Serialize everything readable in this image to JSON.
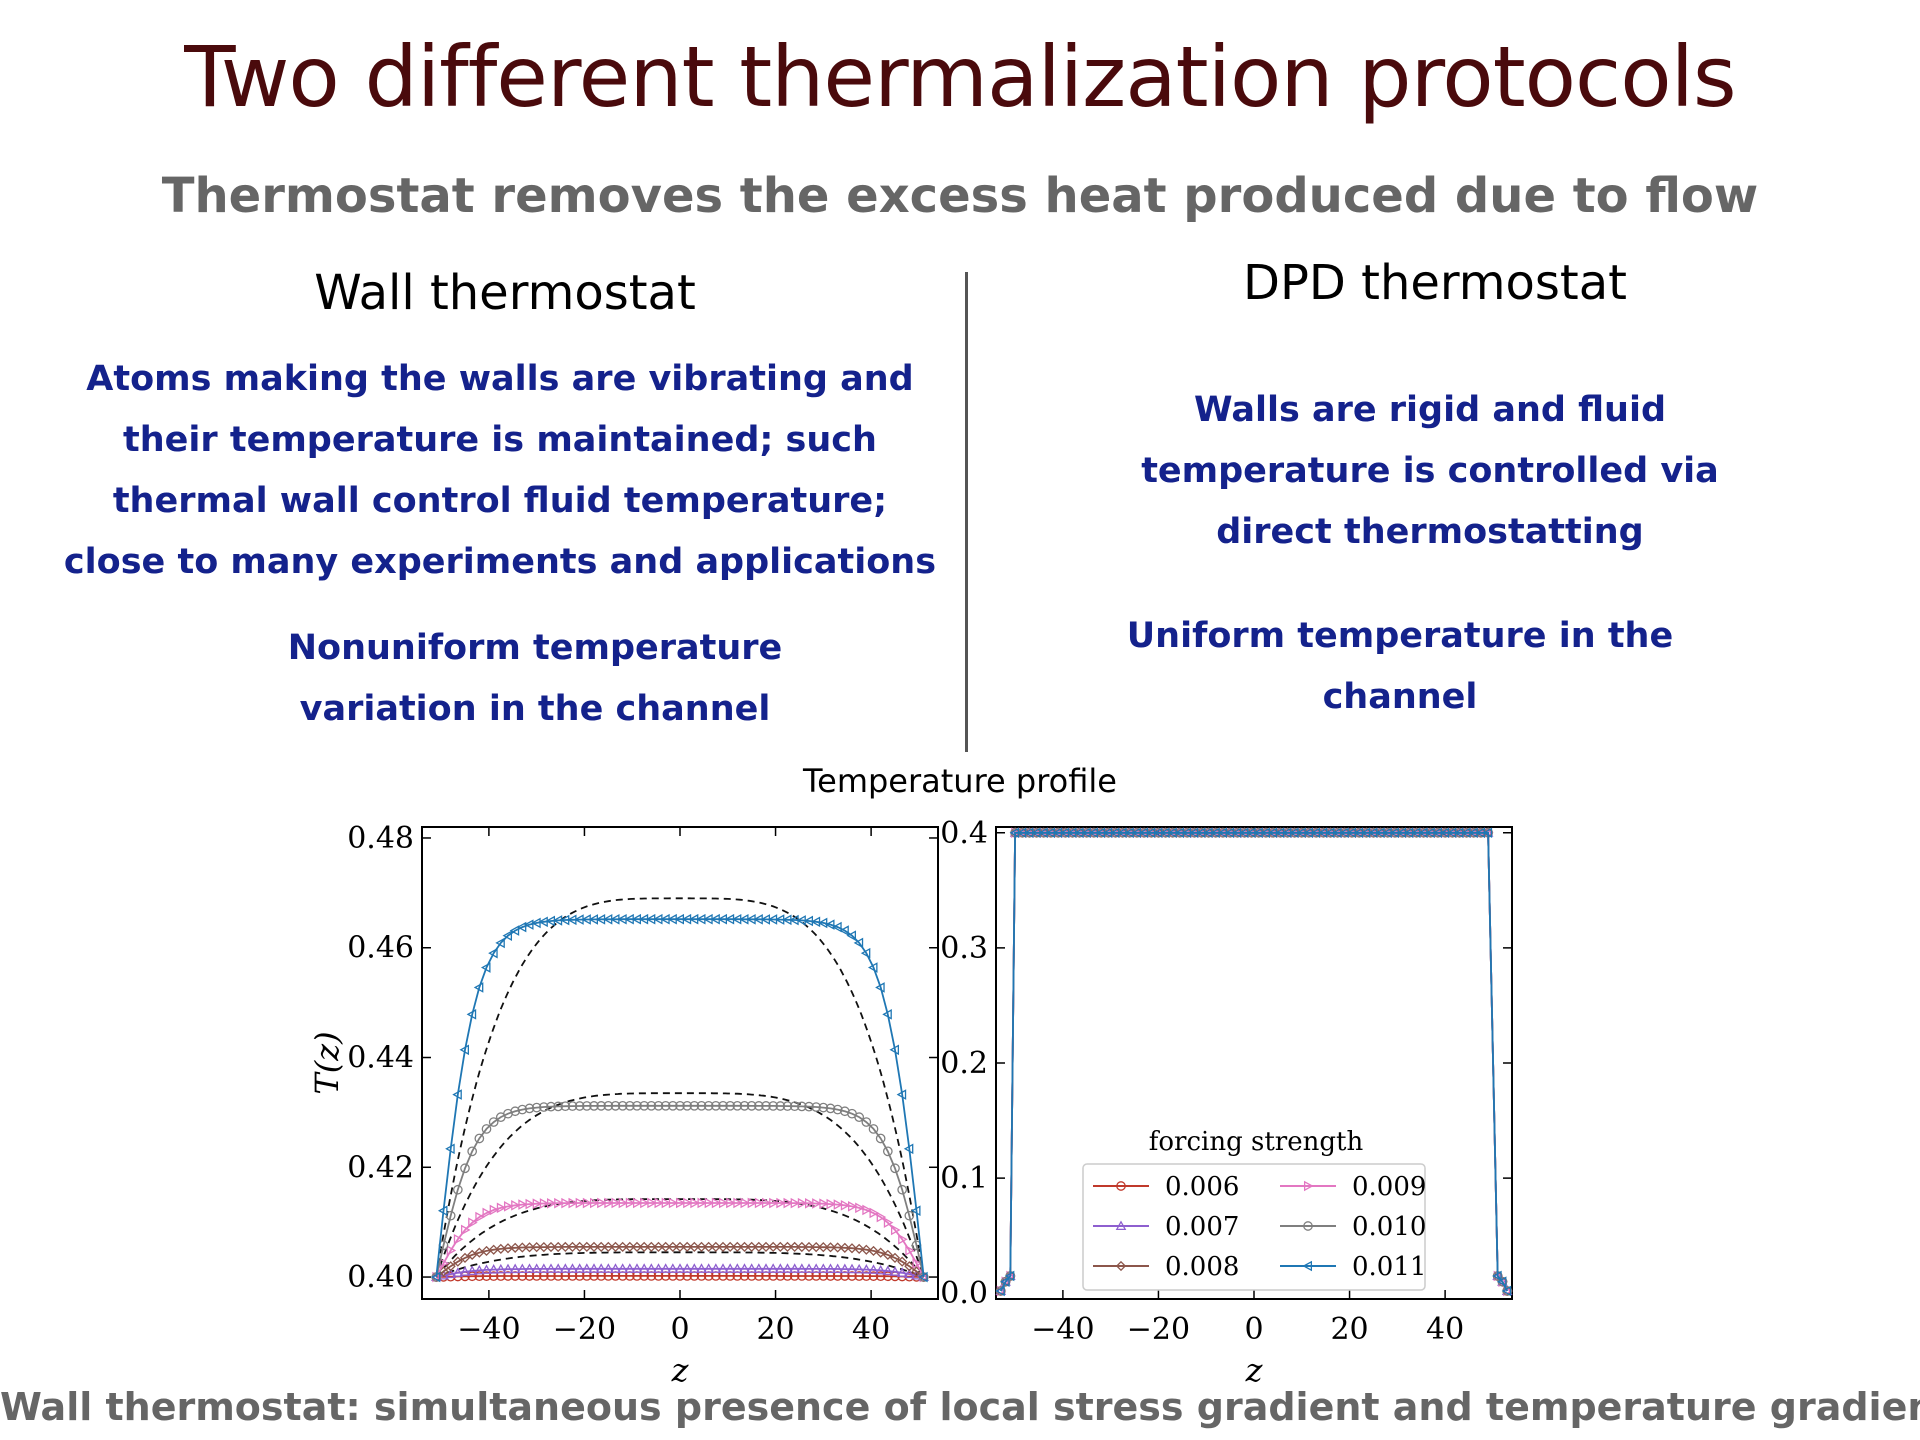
{
  "slide": {
    "title": "Two different thermalization protocols",
    "subtitle": "Thermostat removes the excess heat produced due to flow",
    "left": {
      "heading": "Wall thermostat",
      "description_lines": [
        "Atoms making the walls are vibrating and",
        "their temperature is maintained; such",
        "thermal wall control fluid temperature;",
        "close to many experiments and applications"
      ],
      "result_lines": [
        "Nonuniform temperature",
        "variation in the channel"
      ]
    },
    "right": {
      "heading": "DPD thermostat",
      "description_lines": [
        "Walls are rigid and fluid",
        "temperature is controlled via",
        "direct thermostatting"
      ],
      "result_lines": [
        "Uniform temperature in the",
        "channel"
      ]
    },
    "plot_title": "Temperature profile",
    "footer": "Wall thermostat: simultaneous presence of local stress gradient and temperature gradient"
  },
  "chart_data": [
    {
      "type": "line",
      "panel": "left",
      "xlabel": "z",
      "ylabel": "T(z)",
      "xlim": [
        -54,
        54
      ],
      "ylim": [
        0.396,
        0.482
      ],
      "xticks": [
        -40,
        -20,
        0,
        20,
        40
      ],
      "xtick_labels": [
        "−40",
        "−20",
        "0",
        "20",
        "40"
      ],
      "yticks": [
        0.4,
        0.42,
        0.44,
        0.46,
        0.48
      ],
      "ytick_labels": [
        "0.40",
        "0.42",
        "0.44",
        "0.46",
        "0.48"
      ],
      "z_wall": 51,
      "series": [
        {
          "name": "0.006",
          "color": "#c0392b",
          "marker": "circle",
          "plateau": 0.4002
        },
        {
          "name": "0.007",
          "color": "#8e5fcf",
          "marker": "triangle-up",
          "plateau": 0.4015
        },
        {
          "name": "0.008",
          "color": "#8c564b",
          "marker": "diamond",
          "plateau": 0.4055
        },
        {
          "name": "0.009",
          "color": "#e377c2",
          "marker": "triangle-right",
          "plateau": 0.4135
        },
        {
          "name": "0.010",
          "color": "#7f7f7f",
          "marker": "circle",
          "plateau": 0.4312
        },
        {
          "name": "0.011",
          "color": "#1f77b4",
          "marker": "triangle-left",
          "plateau": 0.4652
        }
      ],
      "fit_curves": [
        {
          "peak": 0.4045
        },
        {
          "peak": 0.4142
        },
        {
          "peak": 0.4335
        },
        {
          "peak": 0.469
        }
      ]
    },
    {
      "type": "line",
      "panel": "right",
      "xlabel": "z",
      "xlim": [
        -54,
        54
      ],
      "ylim": [
        -0.005,
        0.405
      ],
      "xticks": [
        -40,
        -20,
        0,
        20,
        40
      ],
      "xtick_labels": [
        "−40",
        "−20",
        "0",
        "20",
        "40"
      ],
      "yticks": [
        0.0,
        0.1,
        0.2,
        0.3,
        0.4
      ],
      "ytick_labels": [
        "0.0",
        "0.1",
        "0.2",
        "0.3",
        "0.4"
      ],
      "plateau": 0.4,
      "z_wall": 50,
      "legend": {
        "title": "forcing strength",
        "entries": [
          "0.006",
          "0.007",
          "0.008",
          "0.009",
          "0.010",
          "0.011"
        ]
      }
    }
  ]
}
